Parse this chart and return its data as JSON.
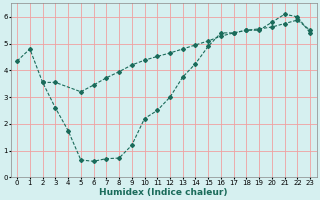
{
  "title": "",
  "xlabel": "Humidex (Indice chaleur)",
  "background_color": "#d6f0f0",
  "grid_color": "#f0a0a0",
  "line_color": "#1a6b5a",
  "line1_x": [
    0,
    1,
    2,
    3,
    4,
    5,
    6,
    7,
    8,
    9,
    10,
    11,
    12,
    13,
    14,
    15,
    16,
    17,
    18,
    19,
    20,
    21,
    22,
    23
  ],
  "line1_y": [
    4.35,
    4.8,
    3.55,
    2.6,
    1.75,
    0.65,
    0.6,
    0.7,
    0.72,
    1.2,
    2.2,
    2.5,
    3.0,
    3.75,
    4.25,
    4.9,
    5.4,
    5.4,
    5.5,
    5.5,
    5.8,
    6.1,
    6.0,
    5.4
  ],
  "line2_x": [
    2,
    3,
    5,
    6,
    7,
    8,
    9,
    10,
    11,
    12,
    13,
    14,
    15,
    16,
    17,
    18,
    19,
    20,
    21,
    22,
    23
  ],
  "line2_y": [
    3.55,
    3.55,
    3.2,
    3.45,
    3.72,
    3.95,
    4.2,
    4.38,
    4.52,
    4.65,
    4.8,
    4.95,
    5.1,
    5.28,
    5.4,
    5.5,
    5.55,
    5.62,
    5.75,
    5.88,
    5.5
  ],
  "xlim": [
    -0.5,
    23.5
  ],
  "ylim": [
    0,
    6.5
  ],
  "xticks": [
    0,
    1,
    2,
    3,
    4,
    5,
    6,
    7,
    8,
    9,
    10,
    11,
    12,
    13,
    14,
    15,
    16,
    17,
    18,
    19,
    20,
    21,
    22,
    23
  ],
  "yticks": [
    0,
    1,
    2,
    3,
    4,
    5,
    6
  ],
  "tick_fontsize": 5.0,
  "xlabel_fontsize": 6.5
}
